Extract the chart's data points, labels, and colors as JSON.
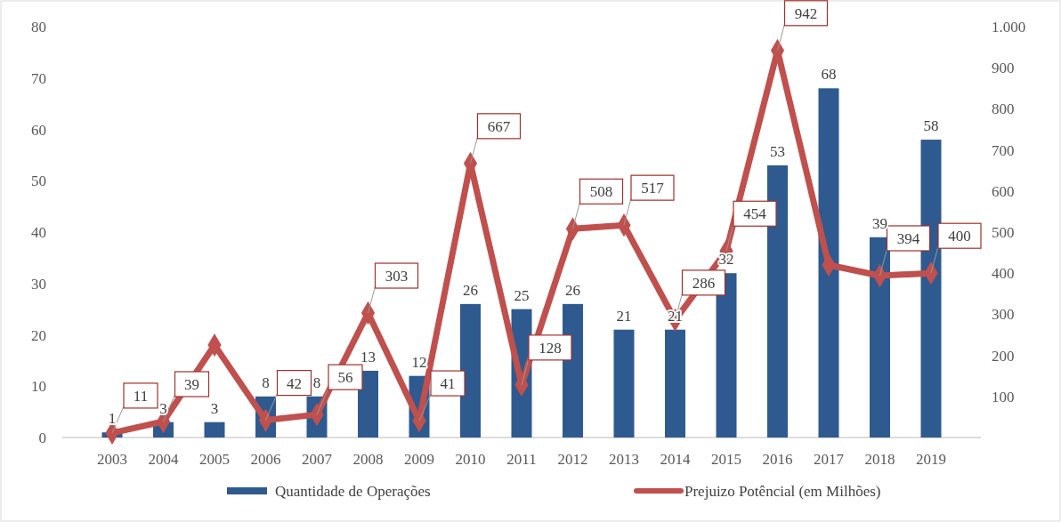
{
  "chart_data": {
    "type": "bar",
    "categories": [
      "2003",
      "2004",
      "2005",
      "2006",
      "2007",
      "2008",
      "2009",
      "2010",
      "2011",
      "2012",
      "2013",
      "2014",
      "2015",
      "2016",
      "2017",
      "2018",
      "2019"
    ],
    "series": [
      {
        "name": "Quantidade de Operações",
        "color": "#2e5a8f",
        "values": [
          1,
          3,
          3,
          8,
          8,
          13,
          12,
          26,
          25,
          26,
          21,
          21,
          32,
          53,
          68,
          39,
          58
        ]
      },
      {
        "name": "Prejuizo Potêncial (em Milhões)",
        "type": "line",
        "axis": "y2",
        "color": "#c0504d",
        "marker": "diamond",
        "values": [
          11,
          39,
          225,
          42,
          56,
          303,
          41,
          667,
          128,
          508,
          517,
          286,
          454,
          942,
          420,
          394,
          400
        ],
        "value_labels": [
          "11",
          "39",
          null,
          "42",
          "56",
          "303",
          "41",
          "667",
          "128",
          "508",
          "517",
          "286",
          "454",
          "942",
          null,
          "394",
          "400"
        ]
      }
    ],
    "data_labels": true,
    "ylim": [
      0,
      80
    ],
    "yticks": [
      0,
      10,
      20,
      30,
      40,
      50,
      60,
      70,
      80
    ],
    "y2lim": [
      0,
      1000
    ],
    "y2ticks": [
      100,
      200,
      300,
      400,
      500,
      600,
      700,
      800,
      900,
      {
        "value": 1000,
        "label": "1.000"
      }
    ],
    "grid": false,
    "legend": "bottom"
  }
}
